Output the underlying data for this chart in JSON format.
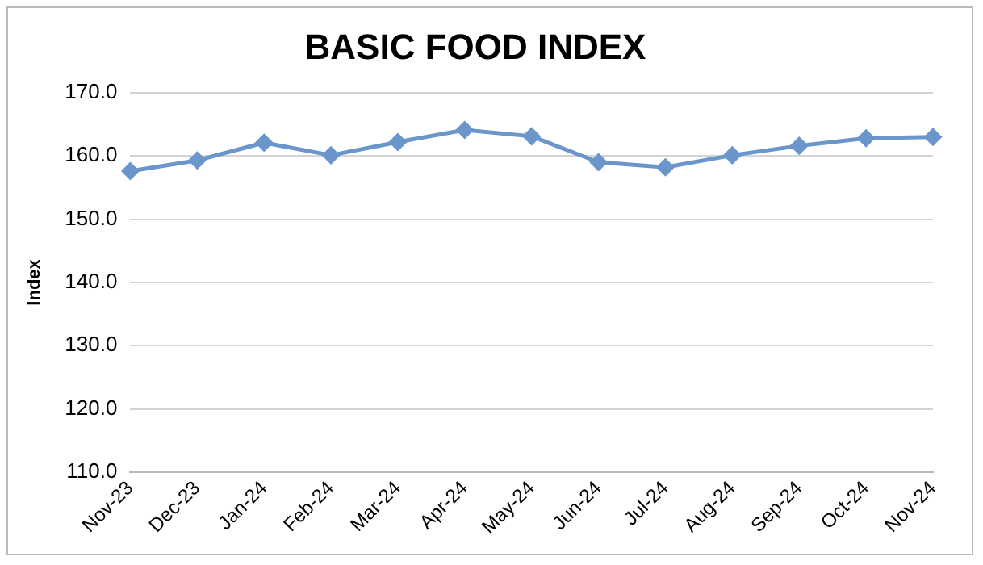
{
  "chart_data": {
    "type": "line",
    "title": "BASIC FOOD INDEX",
    "ylabel": "Index",
    "categories": [
      "Nov-23",
      "Dec-23",
      "Jan-24",
      "Feb-24",
      "Mar-24",
      "Apr-24",
      "May-24",
      "Jun-24",
      "Jul-24",
      "Aug-24",
      "Sep-24",
      "Oct-24",
      "Nov-24"
    ],
    "series": [
      {
        "color": "#6a96cc",
        "values": [
          157.6,
          159.3,
          162.1,
          160.1,
          162.2,
          164.1,
          163.1,
          159.0,
          158.2,
          160.1,
          161.6,
          162.8,
          163.0
        ]
      }
    ],
    "ylim": [
      110,
      170
    ],
    "yticks": [
      {
        "value": 110,
        "label": "110.0"
      },
      {
        "value": 120,
        "label": "120.0"
      },
      {
        "value": 130,
        "label": "130.0"
      },
      {
        "value": 140,
        "label": "140.0"
      },
      {
        "value": 150,
        "label": "150.0"
      },
      {
        "value": 160,
        "label": "160.0"
      },
      {
        "value": 170,
        "label": "170.0"
      }
    ],
    "grid": "y",
    "legend": false,
    "marker": "diamond",
    "line_style": "solid"
  }
}
